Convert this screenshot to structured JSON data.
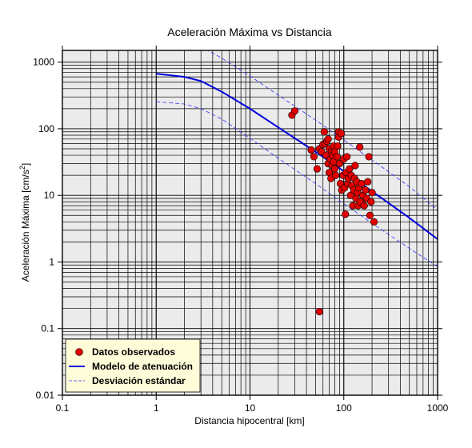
{
  "chart_data": {
    "type": "scatter",
    "title": "Aceleración Máxima vs Distancia",
    "xlabel": "Distancia hipocentral [km]",
    "ylabel_main": "Aceleración Máxima [cm/s",
    "ylabel_sup": "2",
    "ylabel_end": "]",
    "x_scale": "log",
    "y_scale": "log",
    "xlim": [
      0.1,
      1000
    ],
    "ylim": [
      0.01,
      1500
    ],
    "x_ticks": [
      0.1,
      1,
      10,
      100,
      1000
    ],
    "x_tick_labels": [
      "0.1",
      "1",
      "10",
      "100",
      "1000"
    ],
    "y_ticks": [
      0.01,
      0.1,
      1,
      10,
      100,
      1000
    ],
    "y_tick_labels": [
      "0.01",
      "0.1",
      "1",
      "10",
      "100",
      "1000"
    ],
    "grid": true,
    "legend_position": "bottom-left",
    "colors": {
      "points": "#e00000",
      "model": "#0000dd",
      "std": "#3333ff",
      "background": "#ebebeb",
      "legend_bg": "#fffdd9"
    },
    "series": [
      {
        "name": "Datos observados",
        "kind": "points",
        "points": [
          {
            "x": 28,
            "y": 160
          },
          {
            "x": 30,
            "y": 185
          },
          {
            "x": 55,
            "y": 0.18
          },
          {
            "x": 45,
            "y": 48
          },
          {
            "x": 48,
            "y": 38
          },
          {
            "x": 52,
            "y": 25
          },
          {
            "x": 55,
            "y": 50
          },
          {
            "x": 58,
            "y": 45
          },
          {
            "x": 60,
            "y": 58
          },
          {
            "x": 62,
            "y": 90
          },
          {
            "x": 63,
            "y": 60
          },
          {
            "x": 65,
            "y": 40
          },
          {
            "x": 66,
            "y": 65
          },
          {
            "x": 68,
            "y": 30
          },
          {
            "x": 68,
            "y": 70
          },
          {
            "x": 70,
            "y": 50
          },
          {
            "x": 70,
            "y": 22
          },
          {
            "x": 72,
            "y": 35
          },
          {
            "x": 73,
            "y": 18
          },
          {
            "x": 74,
            "y": 45
          },
          {
            "x": 75,
            "y": 28
          },
          {
            "x": 76,
            "y": 40
          },
          {
            "x": 78,
            "y": 55
          },
          {
            "x": 78,
            "y": 32
          },
          {
            "x": 80,
            "y": 25
          },
          {
            "x": 80,
            "y": 45
          },
          {
            "x": 82,
            "y": 20
          },
          {
            "x": 85,
            "y": 38
          },
          {
            "x": 86,
            "y": 55
          },
          {
            "x": 88,
            "y": 90
          },
          {
            "x": 88,
            "y": 75
          },
          {
            "x": 90,
            "y": 30
          },
          {
            "x": 92,
            "y": 15
          },
          {
            "x": 94,
            "y": 85
          },
          {
            "x": 95,
            "y": 12
          },
          {
            "x": 98,
            "y": 20
          },
          {
            "x": 100,
            "y": 35
          },
          {
            "x": 102,
            "y": 13
          },
          {
            "x": 104,
            "y": 5.2
          },
          {
            "x": 106,
            "y": 22
          },
          {
            "x": 108,
            "y": 38
          },
          {
            "x": 110,
            "y": 15
          },
          {
            "x": 112,
            "y": 18
          },
          {
            "x": 115,
            "y": 25
          },
          {
            "x": 118,
            "y": 10
          },
          {
            "x": 120,
            "y": 20
          },
          {
            "x": 122,
            "y": 14
          },
          {
            "x": 125,
            "y": 7
          },
          {
            "x": 128,
            "y": 12
          },
          {
            "x": 130,
            "y": 18
          },
          {
            "x": 132,
            "y": 28
          },
          {
            "x": 135,
            "y": 9
          },
          {
            "x": 138,
            "y": 16
          },
          {
            "x": 140,
            "y": 11
          },
          {
            "x": 142,
            "y": 7
          },
          {
            "x": 145,
            "y": 13
          },
          {
            "x": 148,
            "y": 53
          },
          {
            "x": 150,
            "y": 8
          },
          {
            "x": 155,
            "y": 15
          },
          {
            "x": 160,
            "y": 10
          },
          {
            "x": 165,
            "y": 7
          },
          {
            "x": 170,
            "y": 12
          },
          {
            "x": 175,
            "y": 9
          },
          {
            "x": 180,
            "y": 16
          },
          {
            "x": 185,
            "y": 38
          },
          {
            "x": 190,
            "y": 5
          },
          {
            "x": 195,
            "y": 8
          },
          {
            "x": 200,
            "y": 11
          },
          {
            "x": 210,
            "y": 4
          }
        ]
      },
      {
        "name": "Modelo de atenuación",
        "kind": "line",
        "points": [
          {
            "x": 1,
            "y": 670
          },
          {
            "x": 2,
            "y": 600
          },
          {
            "x": 3,
            "y": 520
          },
          {
            "x": 5,
            "y": 360
          },
          {
            "x": 10,
            "y": 200
          },
          {
            "x": 20,
            "y": 105
          },
          {
            "x": 50,
            "y": 45
          },
          {
            "x": 100,
            "y": 23
          },
          {
            "x": 200,
            "y": 11.5
          },
          {
            "x": 500,
            "y": 4.6
          },
          {
            "x": 1000,
            "y": 2.2
          }
        ]
      },
      {
        "name": "Desviación estándar",
        "kind": "dashed",
        "bands": [
          [
            {
              "x": 1,
              "y": 2400
            },
            {
              "x": 2,
              "y": 2100
            },
            {
              "x": 3,
              "y": 1700
            },
            {
              "x": 5,
              "y": 1150
            },
            {
              "x": 10,
              "y": 620
            },
            {
              "x": 20,
              "y": 320
            },
            {
              "x": 50,
              "y": 135
            },
            {
              "x": 100,
              "y": 68
            },
            {
              "x": 200,
              "y": 34
            },
            {
              "x": 500,
              "y": 13.5
            },
            {
              "x": 1000,
              "y": 6
            }
          ],
          [
            {
              "x": 1,
              "y": 255
            },
            {
              "x": 2,
              "y": 235
            },
            {
              "x": 3,
              "y": 200
            },
            {
              "x": 5,
              "y": 140
            },
            {
              "x": 10,
              "y": 72
            },
            {
              "x": 20,
              "y": 36
            },
            {
              "x": 50,
              "y": 15
            },
            {
              "x": 100,
              "y": 7.5
            },
            {
              "x": 200,
              "y": 3.8
            },
            {
              "x": 500,
              "y": 1.6
            },
            {
              "x": 1000,
              "y": 0.85
            }
          ]
        ]
      }
    ]
  }
}
